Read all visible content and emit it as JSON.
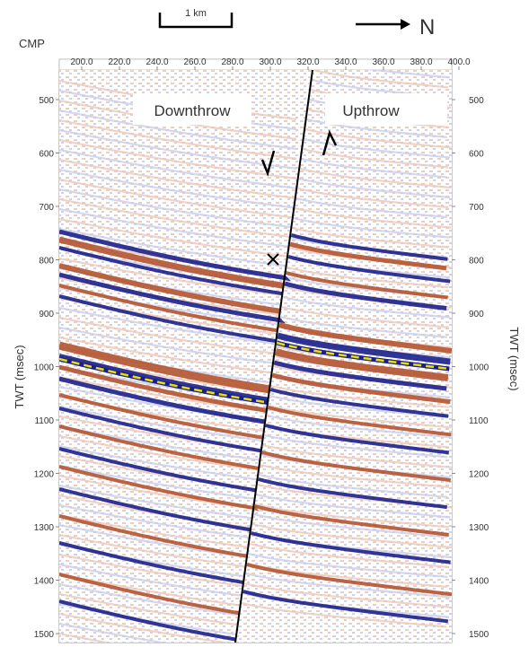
{
  "header": {
    "scale_label": "1 km",
    "north_label": "N",
    "cmp_label": "CMP"
  },
  "axes": {
    "x_ticks": [
      "200.0",
      "220.0",
      "240.0",
      "260.0",
      "280.0",
      "300.0",
      "320.0",
      "340.0",
      "360.0",
      "380.0",
      "400.0"
    ],
    "y_ticks": [
      "500",
      "600",
      "700",
      "800",
      "900",
      "1000",
      "1100",
      "1200",
      "1300",
      "1400",
      "1500"
    ],
    "y_label_left": "TWT (msec)",
    "y_label_right": "TWT (msec)"
  },
  "annotations": {
    "downthrow": "Downthrow",
    "upthrow": "Upthrow"
  },
  "colors": {
    "trough_blue": "#1b1f8a",
    "peak_red": "#b4532f",
    "fault_line": "#000000",
    "horizon_pick": "#e8e000"
  }
}
